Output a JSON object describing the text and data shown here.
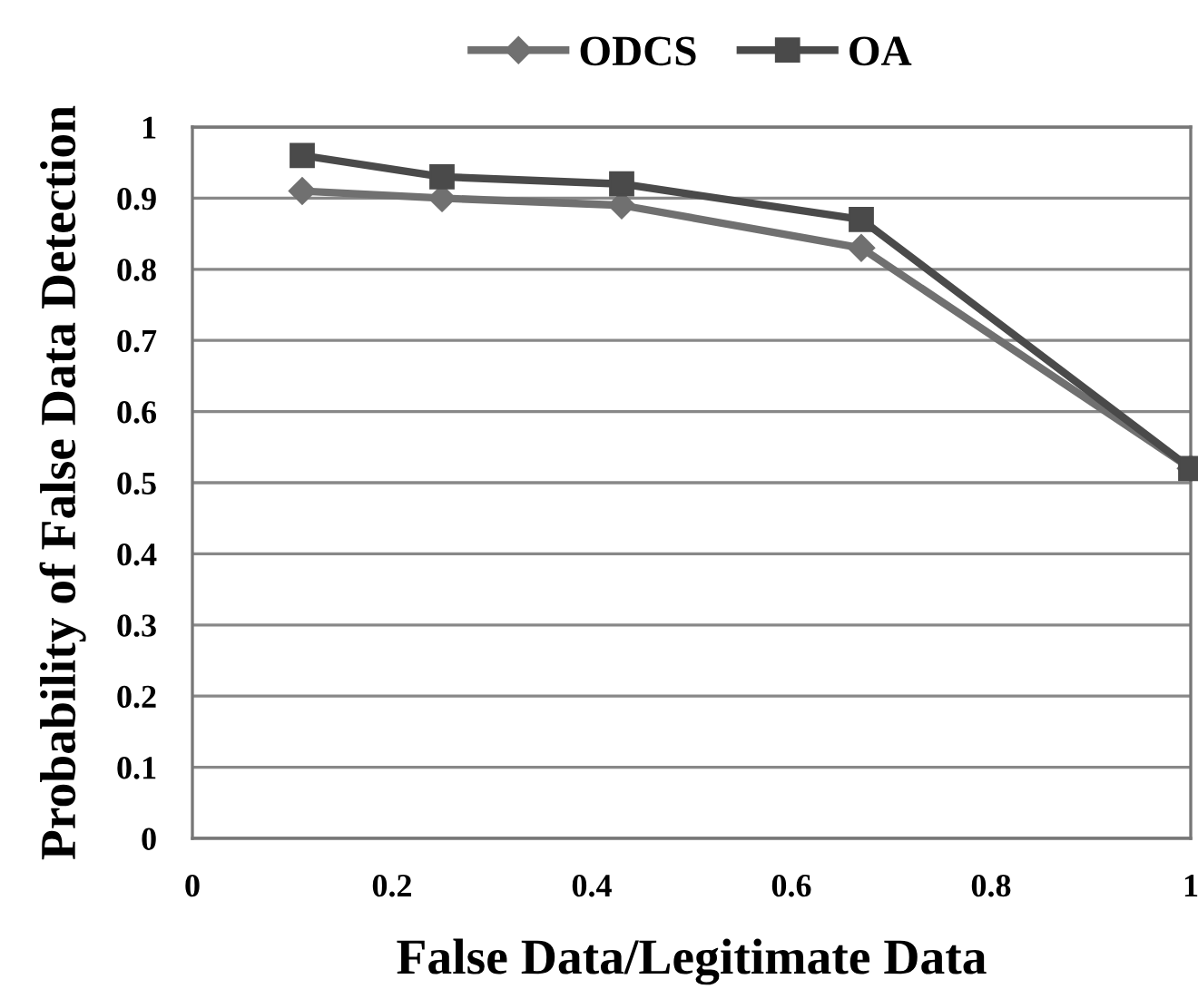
{
  "chart_data": {
    "type": "line",
    "xlabel": "False Data/Legitimate Data",
    "ylabel": "Probability of False Data Detection",
    "x": [
      0.11,
      0.25,
      0.43,
      0.67,
      1.0
    ],
    "series": [
      {
        "name": "ODCS",
        "color": "#707070",
        "values": [
          0.91,
          0.9,
          0.89,
          0.83,
          0.52
        ],
        "marker": "diamond"
      },
      {
        "name": "OA",
        "color": "#4a4a4a",
        "values": [
          0.96,
          0.93,
          0.92,
          0.87,
          0.52
        ],
        "marker": "square"
      }
    ],
    "xlim": [
      0,
      1
    ],
    "xticks": [
      0,
      0.2,
      0.4,
      0.6,
      0.8,
      1
    ],
    "ylim": [
      0,
      1
    ],
    "yticks": [
      0,
      0.1,
      0.2,
      0.3,
      0.4,
      0.5,
      0.6,
      0.7,
      0.8,
      0.9,
      1
    ],
    "grid": "y",
    "legend": "top",
    "line_style": "solid"
  }
}
